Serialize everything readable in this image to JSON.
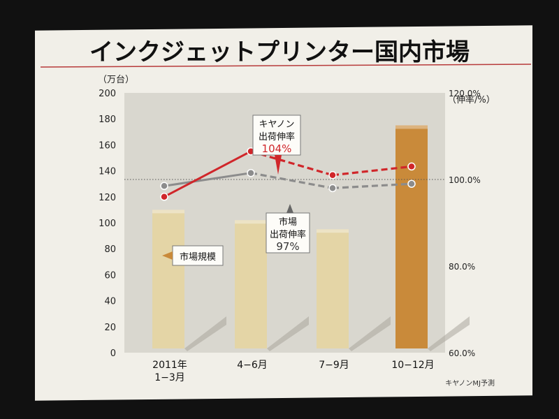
{
  "slide": {
    "title": "インクジェットプリンター国内市場",
    "source_note": "キヤノンMJ予測"
  },
  "colors": {
    "title_rule": "#b73a3a",
    "bar_default": "#e4d5a6",
    "bar_highlight": "#c98a3a",
    "canon_line": "#d0262a",
    "market_line": "#8c8c8c",
    "plot_bg": "#d9d7cf"
  },
  "chart_data": {
    "type": "bar",
    "categories": [
      "2011年\n1−3月",
      "4−6月",
      "7−9月",
      "10−12月"
    ],
    "ylabel": "（万台）",
    "y2label": "（伸率/%）",
    "ylim": [
      0,
      200
    ],
    "y2lim": [
      60,
      120
    ],
    "yticks": [
      0,
      20,
      40,
      60,
      80,
      100,
      120,
      140,
      160,
      180,
      200
    ],
    "y2ticks": [
      "60.0%",
      "80.0%",
      "100.0%",
      "120.0%"
    ],
    "y2tick_values": [
      60,
      80,
      100,
      120
    ],
    "reference_line_y2": 100,
    "grid": false,
    "bars": {
      "name": "市場規模",
      "values": [
        110,
        102,
        95,
        175
      ],
      "highlight_index": 3
    },
    "lines": [
      {
        "name": "キヤノン出荷伸率",
        "label_lines": [
          "キヤノン",
          "出荷伸率",
          "104%"
        ],
        "values": [
          96,
          106.5,
          101,
          103
        ],
        "style": "dashed-after-first"
      },
      {
        "name": "市場出荷伸率",
        "label_lines": [
          "市場",
          "出荷伸率",
          "97%"
        ],
        "values": [
          98.5,
          101.5,
          98,
          99
        ],
        "style": "dashed-after-first"
      }
    ],
    "legend_label": "市場規模"
  }
}
